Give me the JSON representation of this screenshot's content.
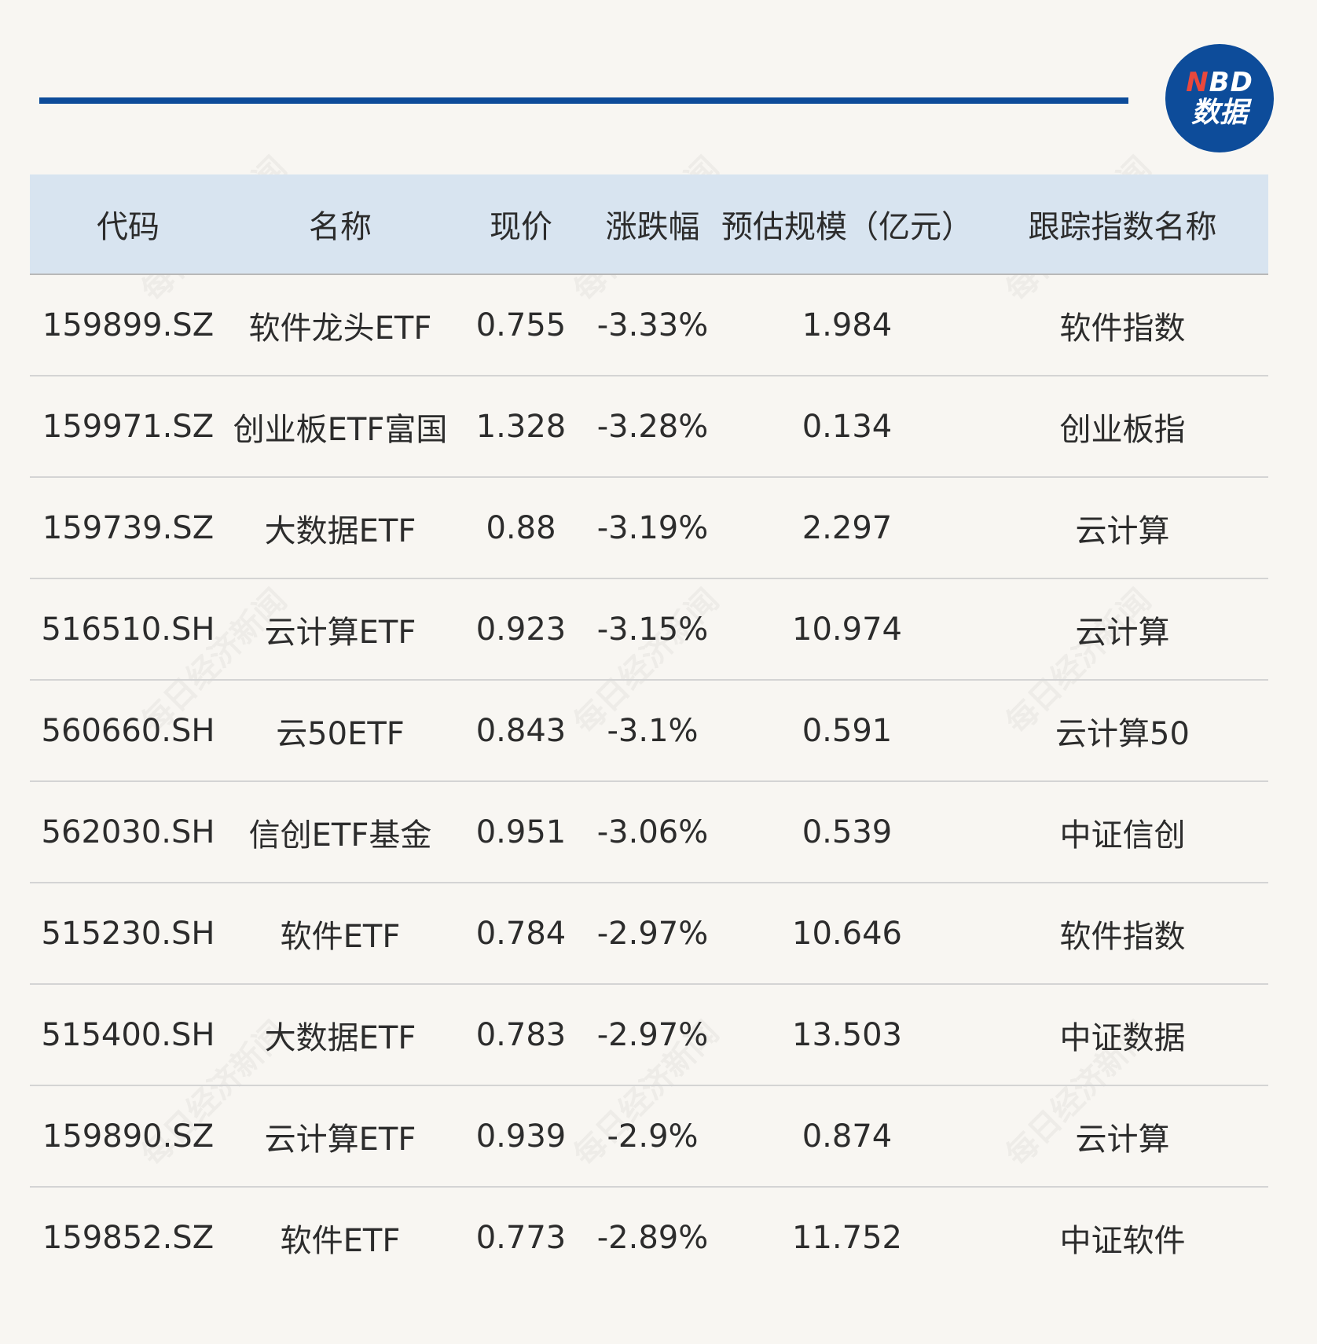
{
  "logo": {
    "brand_n": "N",
    "brand_rest": "BD",
    "sub": "数据"
  },
  "watermark_text": "每日经济新闻",
  "chart_data": {
    "type": "table",
    "columns": [
      "代码",
      "名称",
      "现价",
      "涨跌幅",
      "预估规模（亿元）",
      "跟踪指数名称"
    ],
    "rows": [
      [
        "159899.SZ",
        "软件龙头ETF",
        "0.755",
        "-3.33%",
        "1.984",
        "软件指数"
      ],
      [
        "159971.SZ",
        "创业板ETF富国",
        "1.328",
        "-3.28%",
        "0.134",
        "创业板指"
      ],
      [
        "159739.SZ",
        "大数据ETF",
        "0.88",
        "-3.19%",
        "2.297",
        "云计算"
      ],
      [
        "516510.SH",
        "云计算ETF",
        "0.923",
        "-3.15%",
        "10.974",
        "云计算"
      ],
      [
        "560660.SH",
        "云50ETF",
        "0.843",
        "-3.1%",
        "0.591",
        "云计算50"
      ],
      [
        "562030.SH",
        "信创ETF基金",
        "0.951",
        "-3.06%",
        "0.539",
        "中证信创"
      ],
      [
        "515230.SH",
        "软件ETF",
        "0.784",
        "-2.97%",
        "10.646",
        "软件指数"
      ],
      [
        "515400.SH",
        "大数据ETF",
        "0.783",
        "-2.97%",
        "13.503",
        "中证数据"
      ],
      [
        "159890.SZ",
        "云计算ETF",
        "0.939",
        "-2.9%",
        "0.874",
        "云计算"
      ],
      [
        "159852.SZ",
        "软件ETF",
        "0.773",
        "-2.89%",
        "11.752",
        "中证软件"
      ]
    ]
  }
}
